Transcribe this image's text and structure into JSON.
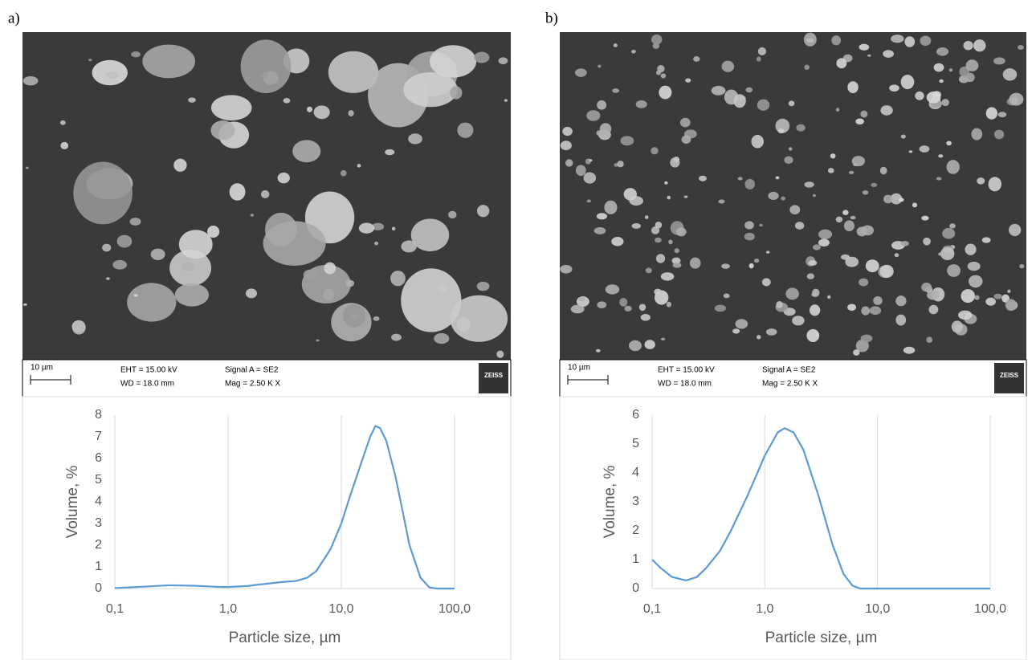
{
  "panels": [
    {
      "label": "a)",
      "scale_bar": "10 µm",
      "eht": "EHT = 15.00 kV",
      "wd": "WD = 18.0 mm",
      "signal": "Signal A = SE2",
      "mag": "Mag =  2.50 K X",
      "logo": "ZEISS"
    },
    {
      "label": "b)",
      "scale_bar": "10 µm",
      "eht": "EHT = 15.00 kV",
      "wd": "WD = 18.0 mm",
      "signal": "Signal A = SE2",
      "mag": "Mag =  2.50 K X",
      "logo": "ZEISS"
    }
  ],
  "chart_data": [
    {
      "type": "line",
      "x_label": "Particle size, µm",
      "y_label": "Volume, %",
      "log_x": true,
      "grid": "x",
      "x": [
        0.1,
        0.2,
        0.3,
        0.5,
        0.8,
        1.0,
        1.5,
        2,
        3,
        4,
        5,
        6,
        8,
        10,
        12,
        15,
        18,
        20,
        22,
        25,
        30,
        35,
        40,
        50,
        60,
        70,
        100
      ],
      "series": [
        {
          "color": "#5b9bd5",
          "values": [
            0.02,
            0.1,
            0.15,
            0.13,
            0.08,
            0.07,
            0.12,
            0.2,
            0.3,
            0.35,
            0.5,
            0.8,
            1.8,
            3.0,
            4.3,
            5.8,
            7.0,
            7.5,
            7.4,
            6.8,
            5.2,
            3.5,
            2.0,
            0.5,
            0.05,
            0,
            0
          ]
        }
      ],
      "xlim": [
        0.1,
        100
      ],
      "xticks": [
        {
          "value": 0.1,
          "label": "0,1"
        },
        {
          "value": 1,
          "label": "1,0"
        },
        {
          "value": 10,
          "label": "10,0"
        },
        {
          "value": 100,
          "label": "100,0"
        }
      ],
      "ylim": [
        0,
        8
      ],
      "yticks": [
        0,
        1,
        2,
        3,
        4,
        5,
        6,
        7,
        8
      ]
    },
    {
      "type": "line",
      "x_label": "Particle size, µm",
      "y_label": "Volume, %",
      "log_x": true,
      "grid": "x",
      "x": [
        0.1,
        0.12,
        0.15,
        0.2,
        0.25,
        0.3,
        0.4,
        0.5,
        0.7,
        1.0,
        1.3,
        1.5,
        1.8,
        2.2,
        3,
        4,
        5,
        6,
        7,
        10,
        100
      ],
      "series": [
        {
          "color": "#5b9bd5",
          "values": [
            1.0,
            0.7,
            0.4,
            0.28,
            0.4,
            0.7,
            1.3,
            2.0,
            3.2,
            4.6,
            5.4,
            5.55,
            5.4,
            4.8,
            3.2,
            1.5,
            0.5,
            0.1,
            0,
            0,
            0
          ]
        }
      ],
      "xlim": [
        0.1,
        100
      ],
      "xticks": [
        {
          "value": 0.1,
          "label": "0,1"
        },
        {
          "value": 1,
          "label": "1,0"
        },
        {
          "value": 10,
          "label": "10,0"
        },
        {
          "value": 100,
          "label": "100,0"
        }
      ],
      "ylim": [
        0,
        6
      ],
      "yticks": [
        0,
        1,
        2,
        3,
        4,
        5,
        6
      ]
    }
  ]
}
